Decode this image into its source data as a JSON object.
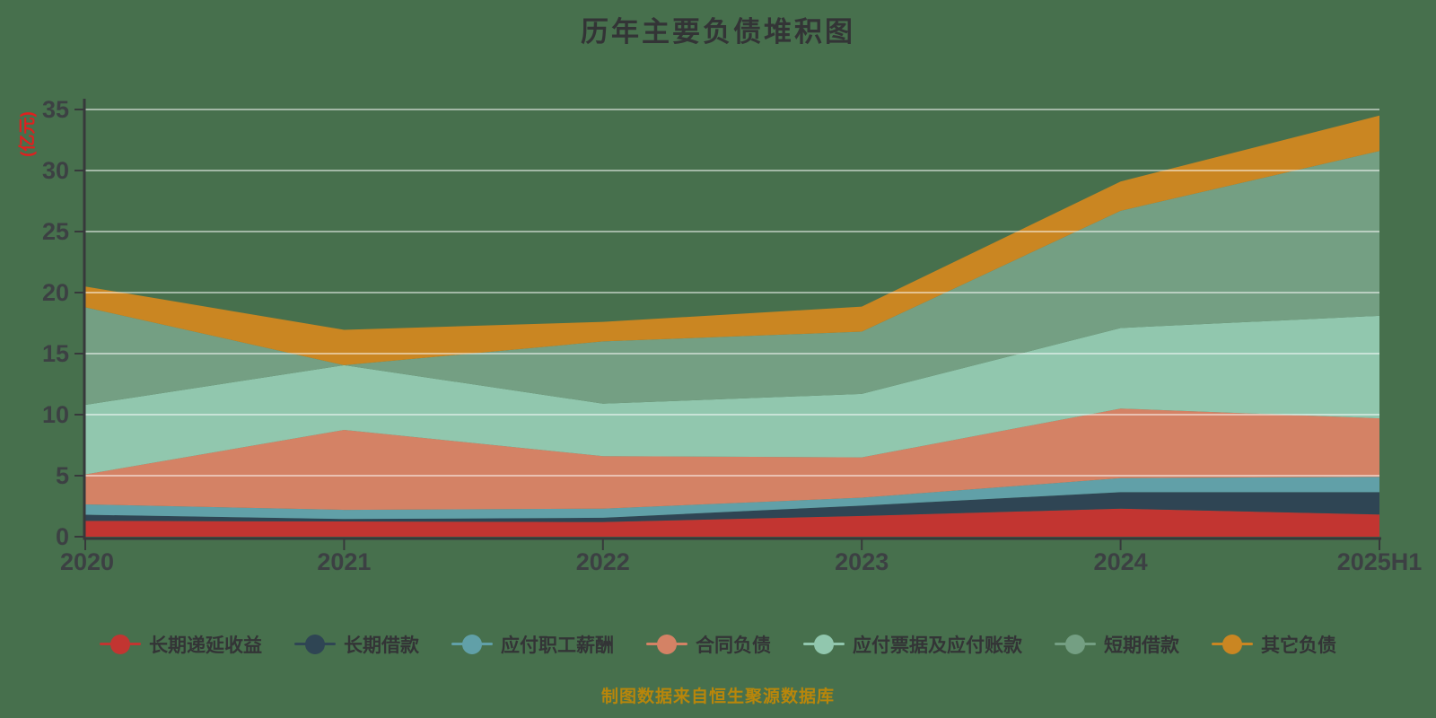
{
  "title": "历年主要负债堆积图",
  "y_axis_name": "(亿元)",
  "source_note": "制图数据来自恒生聚源数据库",
  "colors": {
    "background": "#47704d",
    "title_text": "#333436",
    "axis_line": "#37393b",
    "axis_label": "#3c4043",
    "grid_line": "rgba(255,255,255,0.5)",
    "y_axis_name_text": "#e01f1f",
    "legend_text": "#333436",
    "source_note_text": "#b8860b"
  },
  "chart_data": {
    "type": "area",
    "stacked": true,
    "title": "历年主要负债堆积图",
    "ylabel": "(亿元)",
    "xlabel": "",
    "ylim": [
      0,
      35
    ],
    "y_ticks": [
      0,
      5,
      10,
      15,
      20,
      25,
      30,
      35
    ],
    "grid": true,
    "legend_position": "bottom",
    "categories": [
      "2020",
      "2021",
      "2022",
      "2023",
      "2024",
      "2025H1"
    ],
    "series": [
      {
        "name": "长期递延收益",
        "color": "#c23531",
        "values": [
          1.3,
          1.25,
          1.2,
          1.7,
          2.3,
          1.82
        ]
      },
      {
        "name": "长期借款",
        "color": "#2f4554",
        "values": [
          0.5,
          0.2,
          0.35,
          0.85,
          1.35,
          1.83
        ]
      },
      {
        "name": "应付职工薪酬",
        "color": "#61a0a8",
        "values": [
          0.85,
          0.75,
          0.75,
          0.65,
          1.15,
          1.25
        ]
      },
      {
        "name": "合同负债",
        "color": "#d48265",
        "values": [
          2.45,
          6.55,
          4.3,
          3.3,
          5.7,
          4.8
        ]
      },
      {
        "name": "应付票据及应付账款",
        "color": "#91c7ae",
        "values": [
          5.7,
          5.3,
          4.3,
          5.2,
          6.6,
          8.4
        ]
      },
      {
        "name": "短期借款",
        "color": "#749f83",
        "values": [
          8.0,
          0.0,
          5.1,
          5.1,
          9.6,
          13.5
        ]
      },
      {
        "name": "其它负债",
        "color": "#ca8622",
        "values": [
          1.7,
          2.9,
          1.6,
          2.05,
          2.4,
          2.9
        ]
      }
    ],
    "stacked_totals": [
      20.5,
      16.95,
      17.6,
      18.85,
      29.1,
      34.5
    ]
  }
}
